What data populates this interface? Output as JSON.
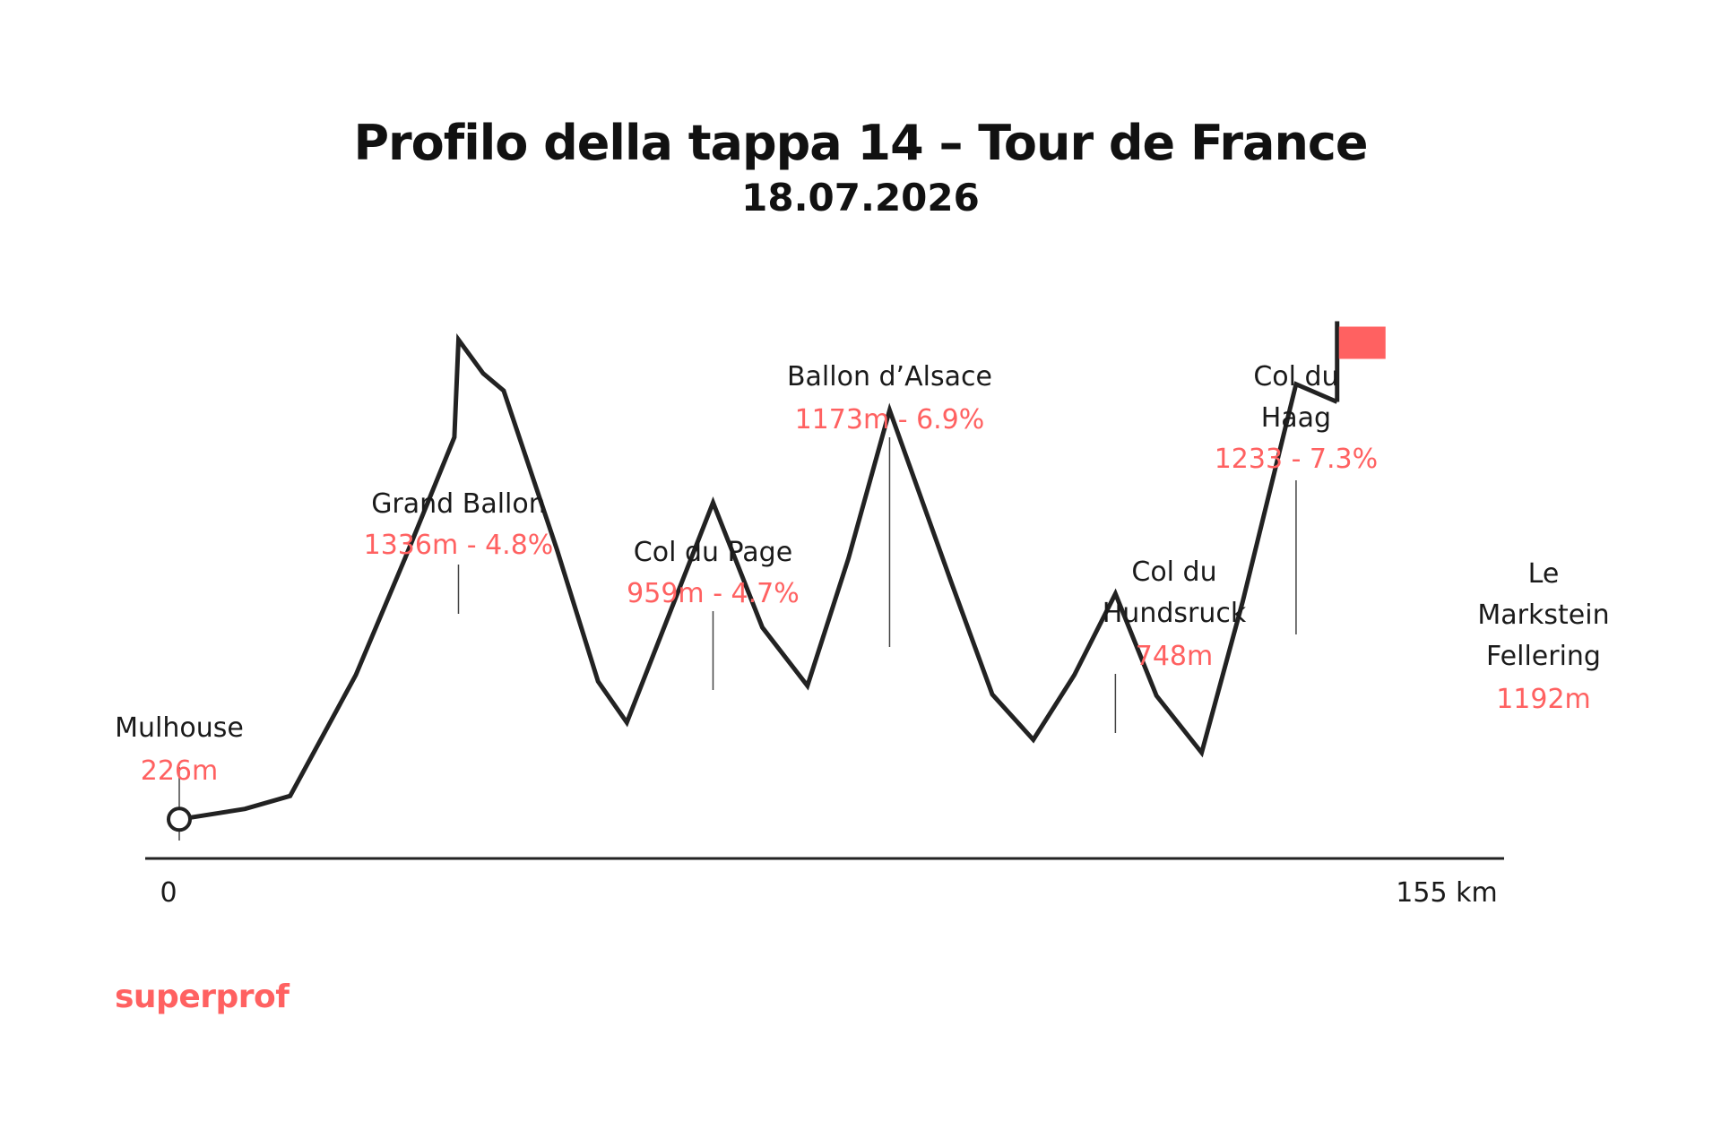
{
  "chart_data": {
    "type": "line",
    "title": "Profilo della tappa 14 – Tour de France",
    "subtitle": "18.07.2026",
    "x_unit": "km",
    "xlim": [
      0,
      155
    ],
    "x_tick_labels": [
      "0",
      "155 km"
    ],
    "ylim": [
      100,
      1500
    ],
    "profile": [
      {
        "km": 0,
        "elev": 226
      },
      {
        "km": 8,
        "elev": 250
      },
      {
        "km": 13.5,
        "elev": 280
      },
      {
        "km": 21.5,
        "elev": 560
      },
      {
        "km": 27.5,
        "elev": 830
      },
      {
        "km": 33.5,
        "elev": 1110
      },
      {
        "km": 34,
        "elev": 1336
      },
      {
        "km": 37,
        "elev": 1258
      },
      {
        "km": 39.5,
        "elev": 1218
      },
      {
        "km": 46,
        "elev": 850
      },
      {
        "km": 51,
        "elev": 545
      },
      {
        "km": 54.5,
        "elev": 450
      },
      {
        "km": 65,
        "elev": 959
      },
      {
        "km": 71,
        "elev": 670
      },
      {
        "km": 76.5,
        "elev": 535
      },
      {
        "km": 81.5,
        "elev": 830
      },
      {
        "km": 86.5,
        "elev": 1173
      },
      {
        "km": 94,
        "elev": 775
      },
      {
        "km": 99,
        "elev": 515
      },
      {
        "km": 104,
        "elev": 410
      },
      {
        "km": 109,
        "elev": 560
      },
      {
        "km": 114,
        "elev": 748
      },
      {
        "km": 119,
        "elev": 512
      },
      {
        "km": 124.5,
        "elev": 380
      },
      {
        "km": 129.5,
        "elev": 730
      },
      {
        "km": 136,
        "elev": 1233
      },
      {
        "km": 141,
        "elev": 1192
      }
    ],
    "annotations": [
      {
        "name": "Mulhouse",
        "value": "226m",
        "km": 0,
        "elev": 226
      },
      {
        "name": "Grand Ballon",
        "value": "1336m - 4.8%",
        "km": 34,
        "elev": 1336
      },
      {
        "name": "Col du Page",
        "value": "959m - 4.7%",
        "km": 65,
        "elev": 959
      },
      {
        "name": "Ballon d’Alsace",
        "value": "1173m - 6.9%",
        "km": 86.5,
        "elev": 1173
      },
      {
        "name": "Col du Hundsruck",
        "value": "748m",
        "km": 114,
        "elev": 748
      },
      {
        "name": "Col du Haag",
        "value": "1233 - 7.3%",
        "km": 136,
        "elev": 1233
      },
      {
        "name": "Le Markstein Fellering",
        "value": "1192m",
        "km": 141,
        "elev": 1192
      }
    ],
    "colors": {
      "line": "#222222",
      "accent": "#ff6161",
      "axis": "#222222"
    }
  },
  "brand": {
    "name": "superprof",
    "color": "#ff6161"
  }
}
